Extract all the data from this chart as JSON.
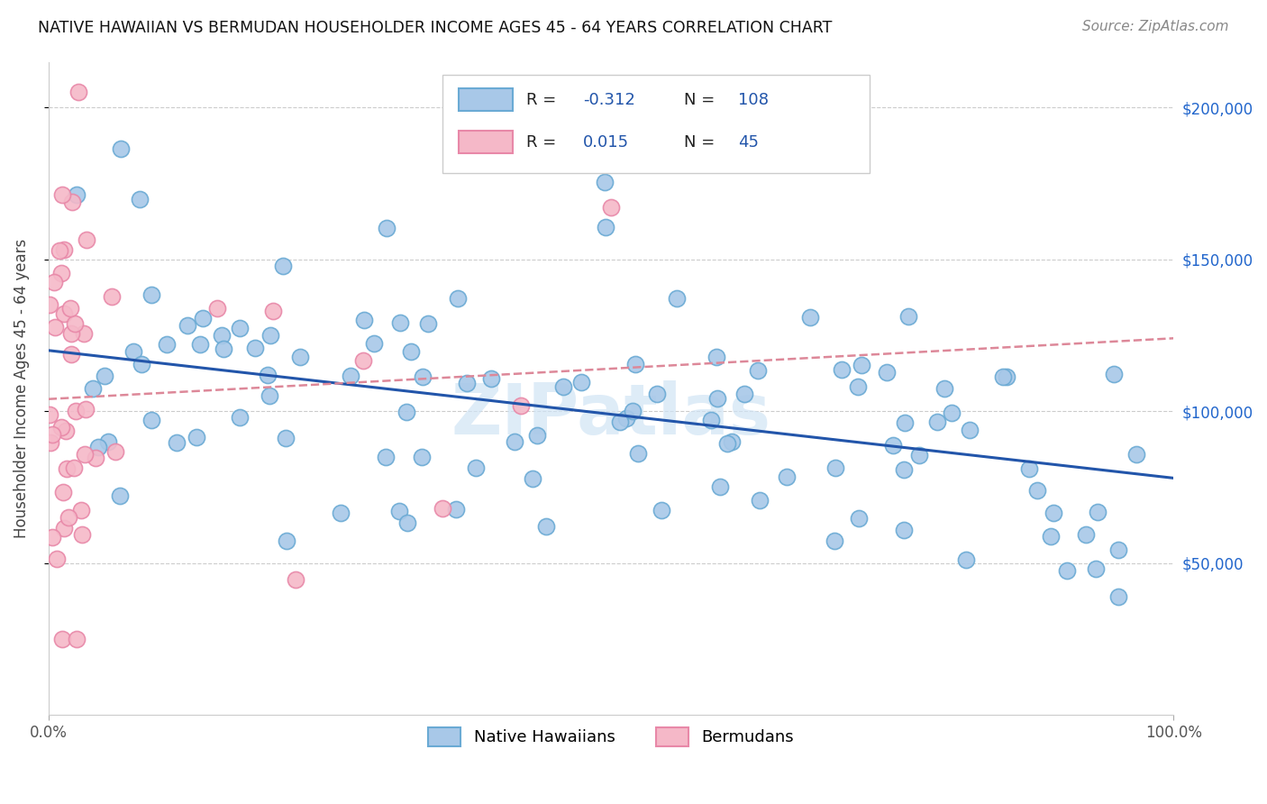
{
  "title": "NATIVE HAWAIIAN VS BERMUDAN HOUSEHOLDER INCOME AGES 45 - 64 YEARS CORRELATION CHART",
  "source": "Source: ZipAtlas.com",
  "ylabel": "Householder Income Ages 45 - 64 years",
  "x_min": 0.0,
  "x_max": 100.0,
  "y_min": 0,
  "y_max": 215000,
  "y_ticks": [
    50000,
    100000,
    150000,
    200000
  ],
  "y_tick_labels": [
    "$50,000",
    "$100,000",
    "$150,000",
    "$200,000"
  ],
  "blue_R": -0.312,
  "blue_N": 108,
  "pink_R": 0.015,
  "pink_N": 45,
  "legend1_label": "Native Hawaiians",
  "legend2_label": "Bermudans",
  "blue_color": "#a8c8e8",
  "blue_edge": "#6aaad4",
  "pink_color": "#f5b8c8",
  "pink_edge": "#e888a8",
  "blue_line_color": "#2255aa",
  "pink_line_color": "#dd8899",
  "watermark": "ZIPatlas",
  "blue_line_y0": 120000,
  "blue_line_y1": 78000,
  "pink_line_y0": 104000,
  "pink_line_y1": 124000
}
